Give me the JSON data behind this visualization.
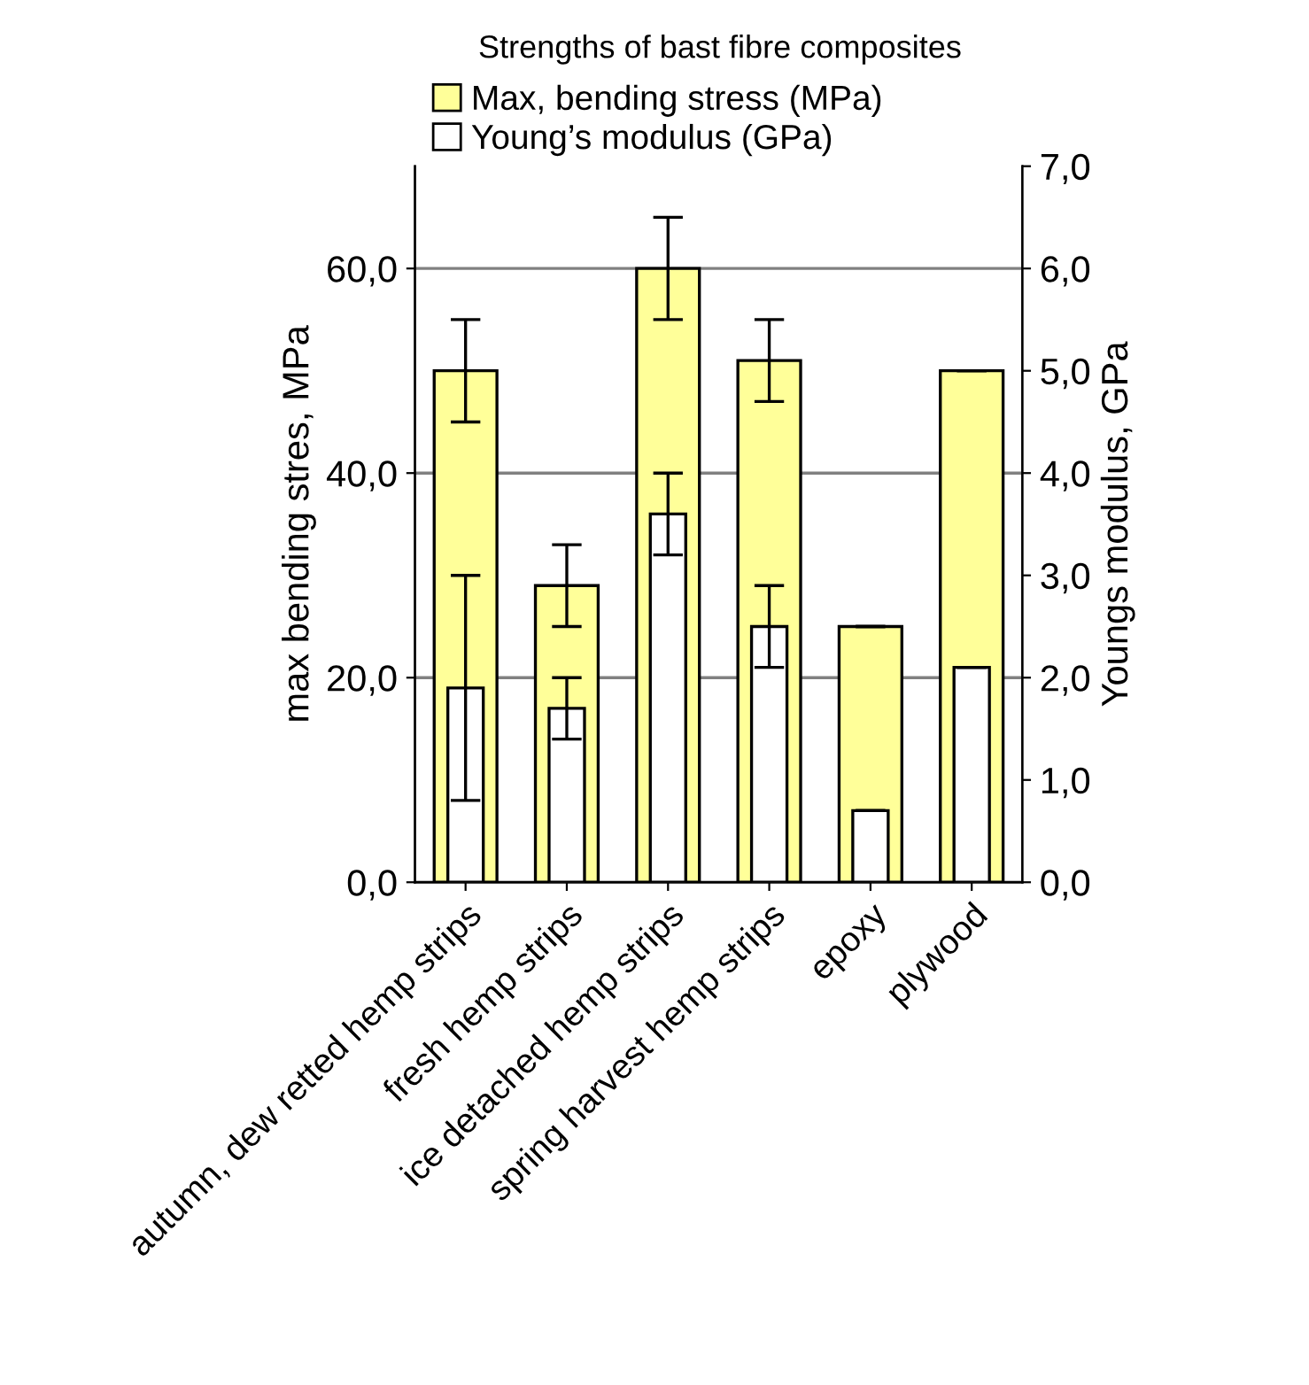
{
  "chart_data": {
    "type": "bar",
    "title": "Strengths of bast fibre composites",
    "categories": [
      "autumn, dew retted hemp strips",
      "fresh hemp strips",
      "ice detached hemp strips",
      "spring harvest hemp strips",
      "epoxy",
      "plywood"
    ],
    "series": [
      {
        "name": "Max, bending stress (MPa)",
        "color": "#ffff99",
        "values": [
          50,
          29,
          60,
          51,
          25,
          50
        ],
        "errors": [
          5,
          4,
          5,
          4,
          null,
          null
        ]
      },
      {
        "name": "Young’s modulus (GPa)",
        "color": "#ffffff",
        "axis": "y2",
        "values": [
          1.9,
          1.7,
          3.6,
          2.5,
          0.7,
          2.1
        ],
        "errors": [
          1.1,
          0.3,
          0.4,
          0.4,
          null,
          null
        ]
      }
    ],
    "ylabel": "max bending stres, MPa",
    "y2label": "Youngs modulus, GPa",
    "ylim": [
      0,
      70
    ],
    "yticks": [
      {
        "value": 0,
        "label": "0,0"
      },
      {
        "value": 20,
        "label": "20,0"
      },
      {
        "value": 40,
        "label": "40,0"
      },
      {
        "value": 60,
        "label": "60,0"
      }
    ],
    "y2lim": [
      0,
      7
    ],
    "y2ticks": [
      {
        "value": 0,
        "label": "0,0"
      },
      {
        "value": 1,
        "label": "1,0"
      },
      {
        "value": 2,
        "label": "2,0"
      },
      {
        "value": 3,
        "label": "3,0"
      },
      {
        "value": 4,
        "label": "4,0"
      },
      {
        "value": 5,
        "label": "5,0"
      },
      {
        "value": 6,
        "label": "6,0"
      },
      {
        "value": 7,
        "label": "7,0"
      }
    ],
    "grid": "y",
    "legend": "top"
  }
}
